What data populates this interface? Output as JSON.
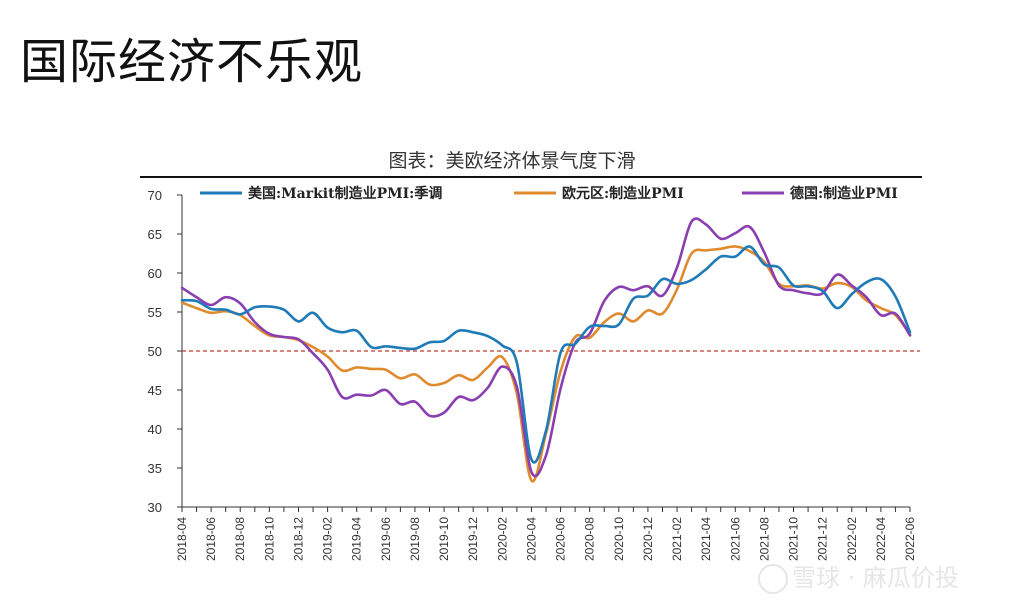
{
  "page": {
    "title": "国际经济不乐观"
  },
  "watermark": {
    "text": "雪球 · 麻瓜价投"
  },
  "chart_data": {
    "type": "line",
    "title": "图表：美欧经济体景气度下滑",
    "xlabel": "",
    "ylabel": "",
    "ylim": [
      30,
      70
    ],
    "yticks": [
      30,
      35,
      40,
      45,
      50,
      55,
      60,
      65,
      70
    ],
    "x_tick_labels": [
      "2018-04",
      "2018-06",
      "2018-08",
      "2018-10",
      "2018-12",
      "2019-02",
      "2019-04",
      "2019-06",
      "2019-08",
      "2019-10",
      "2019-12",
      "2020-02",
      "2020-04",
      "2020-06",
      "2020-08",
      "2020-10",
      "2020-12",
      "2021-02",
      "2021-04",
      "2021-06",
      "2021-08",
      "2021-10",
      "2021-12",
      "2022-02",
      "2022-04",
      "2022-06"
    ],
    "x": [
      "2018-04",
      "2018-05",
      "2018-06",
      "2018-07",
      "2018-08",
      "2018-09",
      "2018-10",
      "2018-11",
      "2018-12",
      "2019-01",
      "2019-02",
      "2019-03",
      "2019-04",
      "2019-05",
      "2019-06",
      "2019-07",
      "2019-08",
      "2019-09",
      "2019-10",
      "2019-11",
      "2019-12",
      "2020-01",
      "2020-02",
      "2020-03",
      "2020-04",
      "2020-05",
      "2020-06",
      "2020-07",
      "2020-08",
      "2020-09",
      "2020-10",
      "2020-11",
      "2020-12",
      "2021-01",
      "2021-02",
      "2021-03",
      "2021-04",
      "2021-05",
      "2021-06",
      "2021-07",
      "2021-08",
      "2021-09",
      "2021-10",
      "2021-11",
      "2021-12",
      "2022-01",
      "2022-02",
      "2022-03",
      "2022-04",
      "2022-05",
      "2022-06"
    ],
    "reference_line": {
      "y": 50,
      "color": "#c0392b",
      "style": "dashed"
    },
    "legend_position": "top",
    "grid": false,
    "series": [
      {
        "name": "美国:Markit制造业PMI:季调",
        "color": "#1f7ab8",
        "values": [
          56.5,
          56.4,
          55.4,
          55.3,
          54.7,
          55.6,
          55.7,
          55.3,
          53.8,
          54.9,
          53.0,
          52.4,
          52.6,
          50.5,
          50.6,
          50.4,
          50.3,
          51.1,
          51.3,
          52.6,
          52.4,
          51.9,
          50.7,
          48.5,
          36.1,
          39.8,
          49.8,
          50.9,
          53.1,
          53.2,
          53.4,
          56.7,
          57.1,
          59.2,
          58.6,
          59.1,
          60.5,
          62.1,
          62.1,
          63.4,
          61.1,
          60.7,
          58.4,
          58.3,
          57.7,
          55.5,
          57.3,
          58.8,
          59.2,
          57.0,
          52.4
        ]
      },
      {
        "name": "欧元区:制造业PMI",
        "color": "#e08a2e",
        "values": [
          56.2,
          55.5,
          54.9,
          55.1,
          54.6,
          53.2,
          52.0,
          51.8,
          51.4,
          50.5,
          49.3,
          47.5,
          47.9,
          47.7,
          47.6,
          46.5,
          47.0,
          45.7,
          45.9,
          46.9,
          46.3,
          47.9,
          49.2,
          44.5,
          33.4,
          39.4,
          47.4,
          51.8,
          51.7,
          53.7,
          54.8,
          53.8,
          55.2,
          54.8,
          57.9,
          62.5,
          62.9,
          63.1,
          63.4,
          62.8,
          61.4,
          58.6,
          58.3,
          58.4,
          58.0,
          58.7,
          58.2,
          56.5,
          55.5,
          54.6,
          52.1
        ]
      },
      {
        "name": "德国:制造业PMI",
        "color": "#8a3fb0",
        "values": [
          58.1,
          56.9,
          55.9,
          56.9,
          56.1,
          53.7,
          52.2,
          51.8,
          51.5,
          49.7,
          47.6,
          44.1,
          44.4,
          44.3,
          45.0,
          43.2,
          43.5,
          41.7,
          42.1,
          44.1,
          43.7,
          45.3,
          48.0,
          45.4,
          34.5,
          36.6,
          45.2,
          51.0,
          52.2,
          56.4,
          58.2,
          57.8,
          58.3,
          57.1,
          60.7,
          66.6,
          66.2,
          64.4,
          65.1,
          65.9,
          62.6,
          58.4,
          57.8,
          57.4,
          57.4,
          59.8,
          58.4,
          56.9,
          54.6,
          54.8,
          52.0
        ]
      }
    ]
  }
}
